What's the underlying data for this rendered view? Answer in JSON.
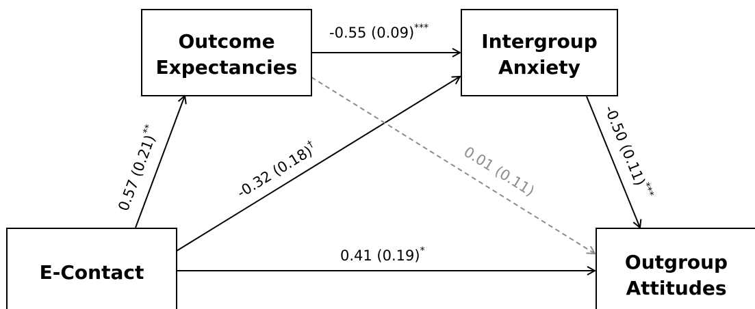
{
  "colors": {
    "significant": "#000000",
    "nonsignificant": "#8c8c8c"
  },
  "nodes": {
    "outcome_expectancies": {
      "line1": "Outcome",
      "line2": "Expectancies"
    },
    "intergroup_anxiety": {
      "line1": "Intergroup",
      "line2": "Anxiety"
    },
    "e_contact": {
      "label": "E-Contact"
    },
    "outgroup_attitudes": {
      "line1": "Outgroup",
      "line2": "Attitudes"
    }
  },
  "paths": {
    "oe_to_ia": {
      "coef": "-0.55 (0.09)",
      "sig": "***",
      "style": "solid"
    },
    "ec_to_oe": {
      "coef": "0.57 (0.21)",
      "sig": "**",
      "style": "solid"
    },
    "ec_to_ia": {
      "coef": "-0.32 (0.18)",
      "sig": "†",
      "style": "solid"
    },
    "oe_to_oa": {
      "coef": "0.01 (0.11)",
      "sig": "",
      "style": "dashed"
    },
    "ia_to_oa": {
      "coef": "-0.50 (0.11)",
      "sig": "***",
      "style": "solid"
    },
    "ec_to_oa": {
      "coef": "0.41 (0.19)",
      "sig": "*",
      "style": "solid"
    }
  }
}
